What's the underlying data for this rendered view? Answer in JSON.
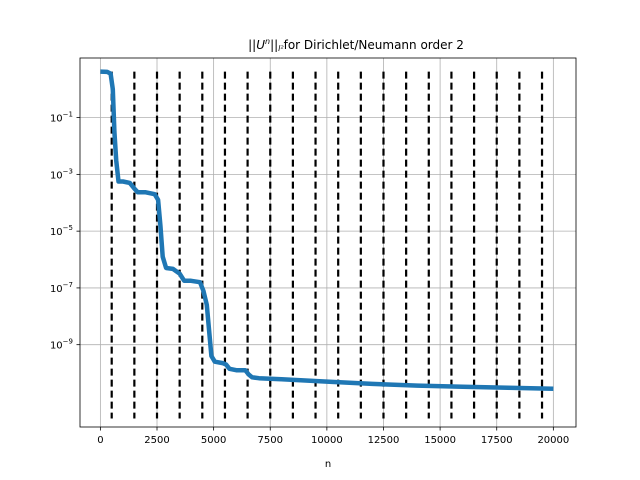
{
  "chart_data": {
    "type": "line",
    "title": "||Uⁿ||ₗ²for Dirichlet/Neumann order 2",
    "title_parts": {
      "prefix": "||",
      "var": "U",
      "sup": "n",
      "mid": "||",
      "sub": "l²",
      "suffix": "for Dirichlet/Neumann order 2"
    },
    "xlabel": "n",
    "ylabel": "",
    "xlim": [
      -900,
      21000
    ],
    "ylim_log10": [
      -11.9,
      1.1
    ],
    "yscale": "log",
    "grid": true,
    "x_ticks": [
      0,
      2500,
      5000,
      7500,
      10000,
      12500,
      15000,
      17500,
      20000
    ],
    "x_tick_labels": [
      "0",
      "2500",
      "5000",
      "7500",
      "10000",
      "12500",
      "15000",
      "17500",
      "20000"
    ],
    "y_tick_exponents": [
      -1,
      -3,
      -5,
      -7,
      -9
    ],
    "y_tick_base": "10",
    "series": [
      {
        "color": "#1f77b4",
        "x": [
          0,
          300,
          450,
          550,
          620,
          700,
          800,
          1000,
          1300,
          1500,
          1650,
          2000,
          2400,
          2550,
          2650,
          2750,
          2900,
          3200,
          3500,
          3700,
          4000,
          4400,
          4550,
          4700,
          4800,
          4900,
          5050,
          5400,
          5550,
          5700,
          6000,
          6400,
          6550,
          6700,
          7000,
          8000,
          10000,
          12000,
          14000,
          16000,
          18000,
          20000
        ],
        "y_log10": [
          0.62,
          0.61,
          0.55,
          0.0,
          -1.5,
          -2.5,
          -3.25,
          -3.25,
          -3.3,
          -3.5,
          -3.63,
          -3.63,
          -3.7,
          -3.9,
          -4.8,
          -5.9,
          -6.3,
          -6.33,
          -6.5,
          -6.75,
          -6.75,
          -6.8,
          -7.1,
          -7.6,
          -8.5,
          -9.4,
          -9.6,
          -9.65,
          -9.7,
          -9.85,
          -9.9,
          -9.9,
          -10.05,
          -10.15,
          -10.18,
          -10.22,
          -10.3,
          -10.38,
          -10.44,
          -10.48,
          -10.52,
          -10.55
        ]
      }
    ],
    "vlines": {
      "color": "#000000",
      "style": "dashed",
      "x": [
        500,
        1500,
        2500,
        3500,
        4500,
        5500,
        6500,
        7500,
        8500,
        9500,
        10500,
        11500,
        12500,
        13500,
        14500,
        15500,
        16500,
        17500,
        18500,
        19500
      ],
      "y_log10_range": [
        -11.6,
        0.62
      ]
    }
  }
}
